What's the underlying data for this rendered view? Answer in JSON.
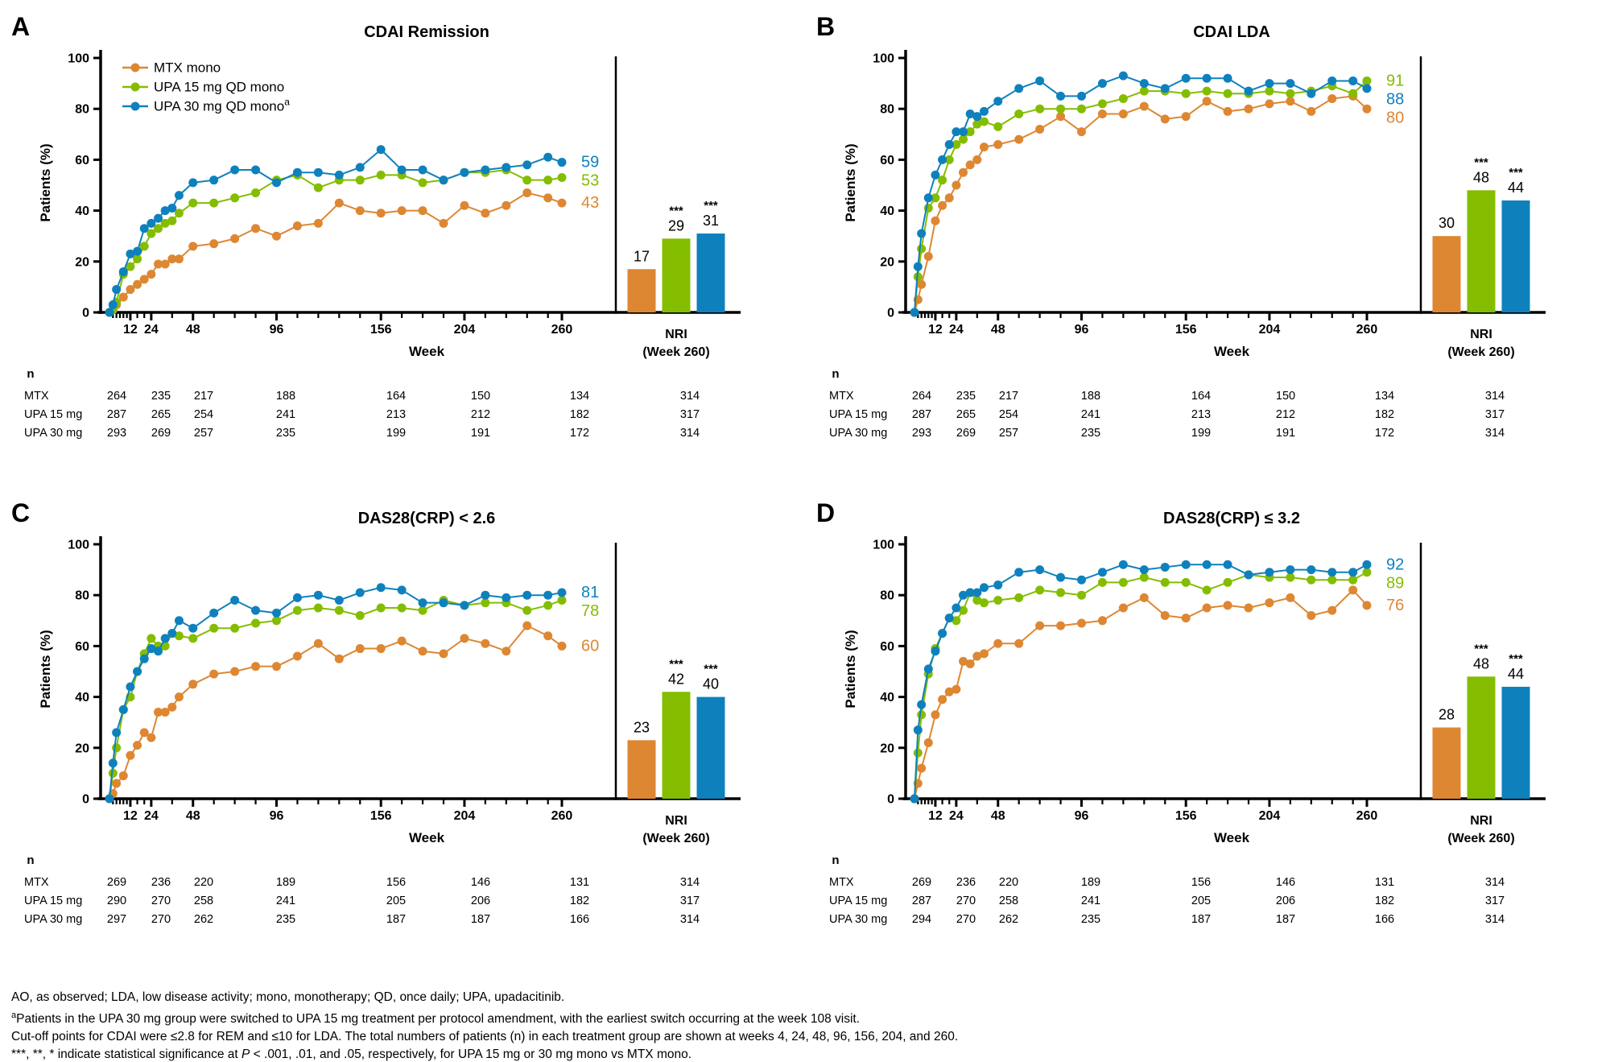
{
  "figure": {
    "colors": {
      "orange": "#DD8732",
      "green": "#84BD00",
      "blue": "#0E81BD",
      "axis": "#000000"
    },
    "series_order": [
      "orange",
      "green",
      "blue"
    ],
    "legend": {
      "items": [
        {
          "label": "MTX mono",
          "color": "orange",
          "sup": ""
        },
        {
          "label": "UPA 15 mg QD mono",
          "color": "green",
          "sup": ""
        },
        {
          "label": "UPA 30 mg QD mono",
          "color": "blue",
          "sup": "a"
        }
      ]
    },
    "axis": {
      "y_label": "Patients (%)",
      "x_label": "Week",
      "y_ticks": [
        0,
        20,
        40,
        60,
        80,
        100
      ],
      "y_range": [
        0,
        100
      ],
      "x_major_ticks": [
        12,
        24,
        48,
        96,
        156,
        204,
        260
      ],
      "x_minor_ticks": [
        2,
        4,
        6,
        8,
        10,
        16,
        20,
        36,
        60,
        72,
        84,
        108,
        120,
        132,
        144,
        168,
        180,
        192,
        216,
        228,
        240,
        252
      ]
    }
  },
  "chart_data": [
    {
      "id": "A",
      "letter": "A",
      "title": "CDAI Remission",
      "type": "line",
      "x_weeks": [
        0,
        2,
        4,
        8,
        12,
        16,
        20,
        24,
        28,
        32,
        36,
        40,
        48,
        60,
        72,
        84,
        96,
        108,
        120,
        132,
        144,
        156,
        168,
        180,
        192,
        204,
        216,
        228,
        240,
        252,
        260
      ],
      "series": [
        {
          "name": "MTX mono",
          "color": "orange",
          "end_label": 43,
          "values": [
            0,
            1,
            3,
            6,
            9,
            11,
            13,
            15,
            19,
            19,
            21,
            21,
            26,
            27,
            29,
            33,
            30,
            34,
            35,
            43,
            40,
            39,
            40,
            40,
            35,
            42,
            39,
            42,
            47,
            45,
            43
          ]
        },
        {
          "name": "UPA 15 mg QD mono",
          "color": "green",
          "end_label": 53,
          "values": [
            0,
            1,
            4,
            15,
            18,
            21,
            26,
            31,
            33,
            35,
            36,
            39,
            43,
            43,
            45,
            47,
            52,
            54,
            49,
            52,
            52,
            54,
            54,
            51,
            52,
            55,
            55,
            56,
            52,
            52,
            53
          ]
        },
        {
          "name": "UPA 30 mg QD mono",
          "color": "blue",
          "end_label": 59,
          "values": [
            0,
            3,
            9,
            16,
            23,
            24,
            33,
            35,
            37,
            40,
            41,
            46,
            51,
            52,
            56,
            56,
            51,
            55,
            55,
            54,
            57,
            64,
            56,
            56,
            52,
            55,
            56,
            57,
            58,
            61,
            59
          ]
        }
      ],
      "nri_bars": {
        "label": "NRI",
        "sublabel": "(Week 260)",
        "values": [
          17,
          29,
          31
        ],
        "stars": [
          "",
          "***",
          "***"
        ]
      },
      "n_table": {
        "header": "n",
        "week_columns": [
          4,
          24,
          48,
          96,
          156,
          204,
          260
        ],
        "rows": [
          {
            "label": "MTX",
            "values": [
              264,
              235,
              217,
              188,
              164,
              150,
              134,
              314
            ]
          },
          {
            "label": "UPA 15 mg",
            "values": [
              287,
              265,
              254,
              241,
              213,
              212,
              182,
              317
            ]
          },
          {
            "label": "UPA 30 mg",
            "values": [
              293,
              269,
              257,
              235,
              199,
              191,
              172,
              314
            ]
          }
        ]
      }
    },
    {
      "id": "B",
      "letter": "B",
      "title": "CDAI LDA",
      "type": "line",
      "x_weeks": [
        0,
        2,
        4,
        8,
        12,
        16,
        20,
        24,
        28,
        32,
        36,
        40,
        48,
        60,
        72,
        84,
        96,
        108,
        120,
        132,
        144,
        156,
        168,
        180,
        192,
        204,
        216,
        228,
        240,
        252,
        260
      ],
      "series": [
        {
          "name": "MTX mono",
          "color": "orange",
          "end_label": 80,
          "values": [
            0,
            5,
            11,
            22,
            36,
            42,
            45,
            50,
            55,
            58,
            60,
            65,
            66,
            68,
            72,
            77,
            71,
            78,
            78,
            81,
            76,
            77,
            83,
            79,
            80,
            82,
            83,
            79,
            84,
            85,
            80
          ]
        },
        {
          "name": "UPA 15 mg QD mono",
          "color": "green",
          "end_label": 91,
          "values": [
            0,
            14,
            25,
            41,
            45,
            52,
            60,
            66,
            68,
            71,
            74,
            75,
            73,
            78,
            80,
            80,
            80,
            82,
            84,
            87,
            87,
            86,
            87,
            86,
            86,
            87,
            86,
            87,
            89,
            86,
            91
          ]
        },
        {
          "name": "UPA 30 mg QD mono",
          "color": "blue",
          "end_label": 88,
          "values": [
            0,
            18,
            31,
            45,
            54,
            60,
            66,
            71,
            71,
            78,
            77,
            79,
            83,
            88,
            91,
            85,
            85,
            90,
            93,
            90,
            88,
            92,
            92,
            92,
            87,
            90,
            90,
            86,
            91,
            91,
            88
          ]
        }
      ],
      "nri_bars": {
        "label": "NRI",
        "sublabel": "(Week 260)",
        "values": [
          30,
          48,
          44
        ],
        "stars": [
          "",
          "***",
          "***"
        ]
      },
      "n_table": {
        "header": "n",
        "week_columns": [
          4,
          24,
          48,
          96,
          156,
          204,
          260
        ],
        "rows": [
          {
            "label": "MTX",
            "values": [
              264,
              235,
              217,
              188,
              164,
              150,
              134,
              314
            ]
          },
          {
            "label": "UPA 15 mg",
            "values": [
              287,
              265,
              254,
              241,
              213,
              212,
              182,
              317
            ]
          },
          {
            "label": "UPA 30 mg",
            "values": [
              293,
              269,
              257,
              235,
              199,
              191,
              172,
              314
            ]
          }
        ]
      }
    },
    {
      "id": "C",
      "letter": "C",
      "title": "DAS28(CRP) < 2.6",
      "type": "line",
      "x_weeks": [
        0,
        2,
        4,
        8,
        12,
        16,
        20,
        24,
        28,
        32,
        36,
        40,
        48,
        60,
        72,
        84,
        96,
        108,
        120,
        132,
        144,
        156,
        168,
        180,
        192,
        204,
        216,
        228,
        240,
        252,
        260
      ],
      "series": [
        {
          "name": "MTX mono",
          "color": "orange",
          "end_label": 60,
          "values": [
            0,
            2,
            6,
            9,
            17,
            21,
            26,
            24,
            34,
            34,
            36,
            40,
            45,
            49,
            50,
            52,
            52,
            56,
            61,
            55,
            59,
            59,
            62,
            58,
            57,
            63,
            61,
            58,
            68,
            64,
            60
          ]
        },
        {
          "name": "UPA 15 mg QD mono",
          "color": "green",
          "end_label": 78,
          "values": [
            0,
            10,
            20,
            35,
            40,
            50,
            57,
            63,
            60,
            60,
            65,
            64,
            63,
            67,
            67,
            69,
            70,
            74,
            75,
            74,
            72,
            75,
            75,
            74,
            78,
            76,
            77,
            77,
            74,
            76,
            78
          ]
        },
        {
          "name": "UPA 30 mg QD mono",
          "color": "blue",
          "end_label": 81,
          "values": [
            0,
            14,
            26,
            35,
            44,
            50,
            55,
            59,
            58,
            63,
            65,
            70,
            67,
            73,
            78,
            74,
            73,
            79,
            80,
            78,
            81,
            83,
            82,
            77,
            77,
            76,
            80,
            79,
            80,
            80,
            81
          ]
        }
      ],
      "nri_bars": {
        "label": "NRI",
        "sublabel": "(Week 260)",
        "values": [
          23,
          42,
          40
        ],
        "stars": [
          "",
          "***",
          "***"
        ]
      },
      "n_table": {
        "header": "n",
        "week_columns": [
          4,
          24,
          48,
          96,
          156,
          204,
          260
        ],
        "rows": [
          {
            "label": "MTX",
            "values": [
              269,
              236,
              220,
              189,
              156,
              146,
              131,
              314
            ]
          },
          {
            "label": "UPA 15 mg",
            "values": [
              290,
              270,
              258,
              241,
              205,
              206,
              182,
              317
            ]
          },
          {
            "label": "UPA 30 mg",
            "values": [
              297,
              270,
              262,
              235,
              187,
              187,
              166,
              314
            ]
          }
        ]
      }
    },
    {
      "id": "D",
      "letter": "D",
      "title": "DAS28(CRP) ≤ 3.2",
      "type": "line",
      "x_weeks": [
        0,
        2,
        4,
        8,
        12,
        16,
        20,
        24,
        28,
        32,
        36,
        40,
        48,
        60,
        72,
        84,
        96,
        108,
        120,
        132,
        144,
        156,
        168,
        180,
        192,
        204,
        216,
        228,
        240,
        252,
        260
      ],
      "series": [
        {
          "name": "MTX mono",
          "color": "orange",
          "end_label": 76,
          "values": [
            0,
            6,
            12,
            22,
            33,
            39,
            42,
            43,
            54,
            53,
            56,
            57,
            61,
            61,
            68,
            68,
            69,
            70,
            75,
            79,
            72,
            71,
            75,
            76,
            75,
            77,
            79,
            72,
            74,
            82,
            76
          ]
        },
        {
          "name": "UPA 15 mg QD mono",
          "color": "green",
          "end_label": 89,
          "values": [
            0,
            18,
            33,
            49,
            59,
            65,
            71,
            70,
            74,
            81,
            78,
            77,
            78,
            79,
            82,
            81,
            80,
            85,
            85,
            87,
            85,
            85,
            82,
            85,
            88,
            87,
            87,
            86,
            86,
            86,
            89
          ]
        },
        {
          "name": "UPA 30 mg QD mono",
          "color": "blue",
          "end_label": 92,
          "values": [
            0,
            27,
            37,
            51,
            58,
            65,
            71,
            75,
            80,
            81,
            81,
            83,
            84,
            89,
            90,
            87,
            86,
            89,
            92,
            90,
            91,
            92,
            92,
            92,
            88,
            89,
            90,
            90,
            89,
            89,
            92
          ]
        }
      ],
      "nri_bars": {
        "label": "NRI",
        "sublabel": "(Week 260)",
        "values": [
          28,
          48,
          44
        ],
        "stars": [
          "",
          "***",
          "***"
        ]
      },
      "n_table": {
        "header": "n",
        "week_columns": [
          4,
          24,
          48,
          96,
          156,
          204,
          260
        ],
        "rows": [
          {
            "label": "MTX",
            "values": [
              269,
              236,
              220,
              189,
              156,
              146,
              131,
              314
            ]
          },
          {
            "label": "UPA 15 mg",
            "values": [
              287,
              270,
              258,
              241,
              205,
              206,
              182,
              317
            ]
          },
          {
            "label": "UPA 30 mg",
            "values": [
              294,
              270,
              262,
              235,
              187,
              187,
              166,
              314
            ]
          }
        ]
      }
    }
  ],
  "footnotes": {
    "line1": "AO, as observed; LDA, low disease activity; mono, monotherapy; QD, once daily; UPA, upadacitinib.",
    "line2_sup": "a",
    "line2": "Patients in the UPA 30 mg group were switched to UPA 15 mg treatment per protocol amendment, with the earliest switch occurring at the week 108 visit.",
    "line3": "Cut-off points for CDAI were ≤2.8 for REM and ≤10 for LDA. The total numbers of patients (n) in each treatment group are shown at weeks 4, 24, 48, 96, 156, 204, and 260.",
    "line4_pre": "***, **, * indicate statistical significance at ",
    "line4_italic": "P",
    "line4_post": " < .001, .01, and .05, respectively, for UPA 15 mg or 30 mg mono vs MTX mono."
  }
}
